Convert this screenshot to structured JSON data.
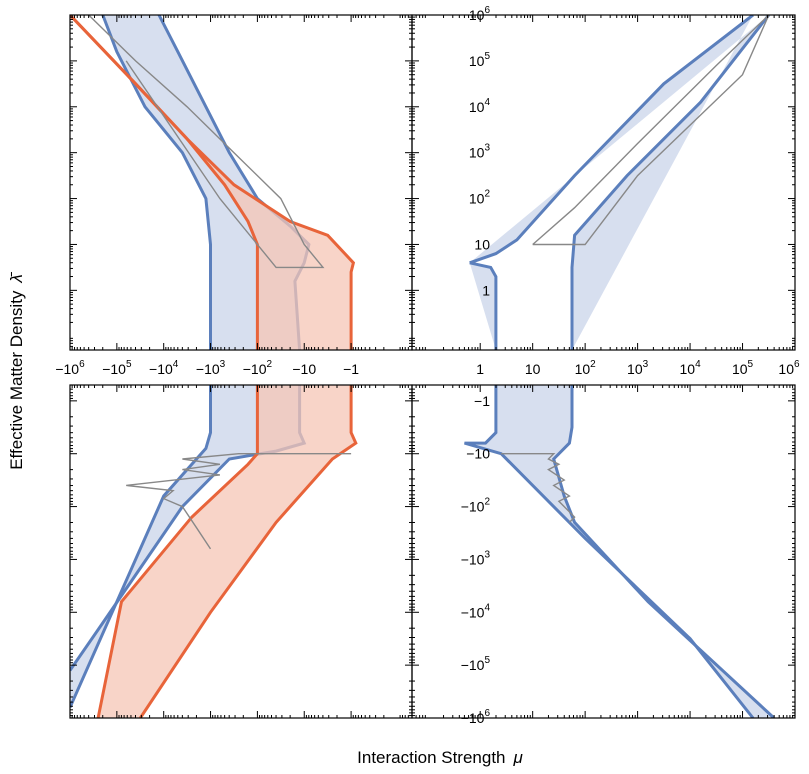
{
  "chart_data": {
    "type": "area",
    "xlabel": "Interaction Strength",
    "xlabel_symbol": "μ",
    "ylabel": "Effective Matter Density",
    "ylabel_symbol": "λ̄",
    "colors": {
      "blue_line": "#5b7fbc",
      "blue_fill": "#c9d4ea",
      "orange_line": "#e8643a",
      "orange_fill": "#f6c6b5",
      "gray_line": "#888888"
    },
    "x_ticks_negative": [
      {
        "label": "−10",
        "exp": "6",
        "value": -1000000
      },
      {
        "label": "−10",
        "exp": "5",
        "value": -100000
      },
      {
        "label": "−10",
        "exp": "4",
        "value": -10000
      },
      {
        "label": "−10",
        "exp": "3",
        "value": -1000
      },
      {
        "label": "−10",
        "exp": "2",
        "value": -100
      },
      {
        "label": "−10",
        "exp": "",
        "value": -10
      },
      {
        "label": "−1",
        "exp": "",
        "value": -1
      }
    ],
    "x_ticks_positive": [
      {
        "label": "1",
        "exp": "",
        "value": 1
      },
      {
        "label": "10",
        "exp": "",
        "value": 10
      },
      {
        "label": "10",
        "exp": "2",
        "value": 100
      },
      {
        "label": "10",
        "exp": "3",
        "value": 1000
      },
      {
        "label": "10",
        "exp": "4",
        "value": 10000
      },
      {
        "label": "10",
        "exp": "5",
        "value": 100000
      },
      {
        "label": "10",
        "exp": "6",
        "value": 1000000
      }
    ],
    "y_ticks_positive": [
      {
        "label": "10",
        "exp": "6",
        "value": 1000000
      },
      {
        "label": "10",
        "exp": "5",
        "value": 100000
      },
      {
        "label": "10",
        "exp": "4",
        "value": 10000
      },
      {
        "label": "10",
        "exp": "3",
        "value": 1000
      },
      {
        "label": "10",
        "exp": "2",
        "value": 100
      },
      {
        "label": "10",
        "exp": "",
        "value": 10
      },
      {
        "label": "1",
        "exp": "",
        "value": 1
      }
    ],
    "y_ticks_negative": [
      {
        "label": "−1",
        "exp": "",
        "value": -1
      },
      {
        "label": "−10",
        "exp": "",
        "value": -10
      },
      {
        "label": "−10",
        "exp": "2",
        "value": -100
      },
      {
        "label": "−10",
        "exp": "3",
        "value": -1000
      },
      {
        "label": "−10",
        "exp": "4",
        "value": -10000
      },
      {
        "label": "−10",
        "exp": "5",
        "value": -100000
      },
      {
        "label": "−10",
        "exp": "6",
        "value": -1000000
      }
    ],
    "panels": [
      {
        "name": "top-left",
        "x_range_log_abs": [
          6,
          -1.3
        ],
        "y_range_log": [
          -1.3,
          6
        ],
        "x_sign": "negative",
        "y_sign": "positive",
        "series": [
          {
            "name": "blue-band",
            "color": "blue",
            "left": [
              [
                5.3,
                6
              ],
              [
                5.0,
                5.2
              ],
              [
                4.4,
                4.0
              ],
              [
                3.6,
                3.0
              ],
              [
                3.1,
                2.0
              ],
              [
                3.0,
                1.0
              ],
              [
                3.0,
                -1.3
              ]
            ],
            "right": [
              [
                4.1,
                6
              ],
              [
                3.7,
                5.2
              ],
              [
                3.1,
                4.0
              ],
              [
                2.6,
                3.0
              ],
              [
                2.0,
                2.0
              ],
              [
                1.3,
                1.4
              ],
              [
                0.9,
                1.0
              ],
              [
                1.0,
                0.6
              ],
              [
                1.2,
                0.2
              ],
              [
                1.1,
                -1.3
              ]
            ]
          },
          {
            "name": "orange-band",
            "color": "orange",
            "left": [
              [
                6,
                6
              ],
              [
                4.6,
                4.5
              ],
              [
                3.5,
                3.3
              ],
              [
                2.7,
                2.3
              ],
              [
                2.2,
                1.5
              ],
              [
                2.0,
                1.0
              ],
              [
                2.0,
                -1.3
              ]
            ],
            "right": [
              [
                6,
                6
              ],
              [
                4.6,
                4.5
              ],
              [
                3.5,
                3.3
              ],
              [
                2.5,
                2.3
              ],
              [
                1.3,
                1.5
              ],
              [
                0.5,
                1.2
              ],
              [
                -0.05,
                0.6
              ],
              [
                0.0,
                0.4
              ],
              [
                0.0,
                -1.3
              ]
            ]
          },
          {
            "name": "gray-outline",
            "color": "gray",
            "points": [
              [
                5.6,
                6
              ],
              [
                4.6,
                5.0
              ],
              [
                3.5,
                4.0
              ],
              [
                2.5,
                3.0
              ],
              [
                1.5,
                2.0
              ],
              [
                1.0,
                1.0
              ],
              [
                0.6,
                0.5
              ],
              [
                1.6,
                0.5
              ],
              [
                2.8,
                2.0
              ],
              [
                4.8,
                5.0
              ]
            ]
          }
        ]
      },
      {
        "name": "top-right",
        "x_range_log": [
          -1.3,
          6
        ],
        "y_range_log": [
          -1.3,
          6
        ],
        "x_sign": "positive",
        "y_sign": "positive",
        "series": [
          {
            "name": "blue-band",
            "color": "blue",
            "left": [
              [
                -0.2,
                0.6
              ],
              [
                0.3,
                0.8
              ],
              [
                0.7,
                1.1
              ],
              [
                1.8,
                2.5
              ],
              [
                3.5,
                4.5
              ],
              [
                5.2,
                6.0
              ]
            ],
            "right": [
              [
                0.3,
                -1.3
              ],
              [
                0.3,
                0.3
              ],
              [
                0.2,
                0.5
              ],
              [
                -0.2,
                0.6
              ]
            ],
            "right_upper": [
              [
                1.75,
                -1.3
              ],
              [
                1.75,
                0.5
              ],
              [
                1.8,
                1.2
              ],
              [
                2.8,
                2.5
              ],
              [
                4.2,
                4.1
              ],
              [
                5.5,
                6.0
              ]
            ]
          },
          {
            "name": "gray-outline",
            "color": "gray",
            "points": [
              [
                1.0,
                1.0
              ],
              [
                2.0,
                1.0
              ],
              [
                3.0,
                2.5
              ],
              [
                4.0,
                3.6
              ],
              [
                5.0,
                4.7
              ],
              [
                5.5,
                6.0
              ],
              [
                4.5,
                4.9
              ],
              [
                3.0,
                3.2
              ],
              [
                1.8,
                1.8
              ],
              [
                1.0,
                1.0
              ]
            ]
          }
        ]
      },
      {
        "name": "bottom-left",
        "x_range_log_abs": [
          6,
          -1.3
        ],
        "y_range_log_abs": [
          -0.3,
          6
        ],
        "x_sign": "negative",
        "y_sign": "negative",
        "series": [
          {
            "name": "blue-band",
            "color": "blue",
            "points": [
              [
                3.0,
                -0.3
              ],
              [
                3.0,
                0.6
              ],
              [
                3.1,
                0.9
              ],
              [
                4.0,
                1.8
              ],
              [
                6,
                5.8
              ]
            ],
            "right": [
              [
                1.1,
                -0.3
              ],
              [
                1.1,
                0.6
              ],
              [
                1.0,
                0.8
              ],
              [
                1.6,
                0.95
              ],
              [
                2.6,
                1.1
              ],
              [
                3.6,
                2.0
              ],
              [
                5.3,
                4.2
              ],
              [
                6,
                5.1
              ]
            ]
          },
          {
            "name": "orange-band",
            "color": "orange",
            "left": [
              [
                2.0,
                -0.3
              ],
              [
                2.0,
                1.0
              ],
              [
                2.2,
                1.2
              ],
              [
                3.4,
                2.2
              ],
              [
                4.9,
                3.8
              ],
              [
                5.4,
                6.0
              ]
            ],
            "right": [
              [
                0.0,
                -0.3
              ],
              [
                0.0,
                0.6
              ],
              [
                -0.1,
                0.8
              ],
              [
                0.4,
                1.1
              ],
              [
                1.6,
                2.3
              ],
              [
                3.0,
                4.0
              ],
              [
                4.5,
                6.0
              ]
            ]
          },
          {
            "name": "gray-oscillation",
            "color": "gray",
            "points": [
              [
                0.0,
                1.0
              ],
              [
                2.4,
                1.0
              ],
              [
                3.6,
                1.1
              ],
              [
                2.8,
                1.2
              ],
              [
                3.6,
                1.3
              ],
              [
                2.8,
                1.4
              ],
              [
                4.8,
                1.6
              ],
              [
                3.8,
                1.7
              ],
              [
                4.0,
                1.85
              ],
              [
                3.6,
                2.0
              ],
              [
                3.3,
                2.4
              ],
              [
                3.0,
                2.8
              ]
            ]
          }
        ]
      },
      {
        "name": "bottom-right",
        "x_range_log": [
          -1.3,
          6
        ],
        "y_range_log_abs": [
          -0.3,
          6
        ],
        "x_sign": "positive",
        "y_sign": "negative",
        "series": [
          {
            "name": "blue-band",
            "color": "blue",
            "left": [
              [
                0.3,
                -0.3
              ],
              [
                0.3,
                0.6
              ],
              [
                0.1,
                0.8
              ],
              [
                -0.3,
                0.8
              ],
              [
                0.4,
                1.0
              ],
              [
                2.0,
                2.6
              ],
              [
                4.0,
                4.5
              ],
              [
                5.2,
                6.0
              ]
            ],
            "right": [
              [
                1.75,
                -0.3
              ],
              [
                1.75,
                0.5
              ],
              [
                1.7,
                0.8
              ],
              [
                1.4,
                1.1
              ],
              [
                1.6,
                1.8
              ],
              [
                1.8,
                2.3
              ],
              [
                3.2,
                3.8
              ],
              [
                5.6,
                6.0
              ]
            ]
          },
          {
            "name": "gray-zigzag",
            "color": "gray",
            "points": [
              [
                0.4,
                1.0
              ],
              [
                1.4,
                1.0
              ],
              [
                1.3,
                1.1
              ],
              [
                1.5,
                1.2
              ],
              [
                1.3,
                1.3
              ],
              [
                1.6,
                1.5
              ],
              [
                1.4,
                1.6
              ],
              [
                1.7,
                1.8
              ],
              [
                1.5,
                1.9
              ],
              [
                1.8,
                2.2
              ],
              [
                1.7,
                2.3
              ]
            ]
          }
        ]
      }
    ]
  }
}
